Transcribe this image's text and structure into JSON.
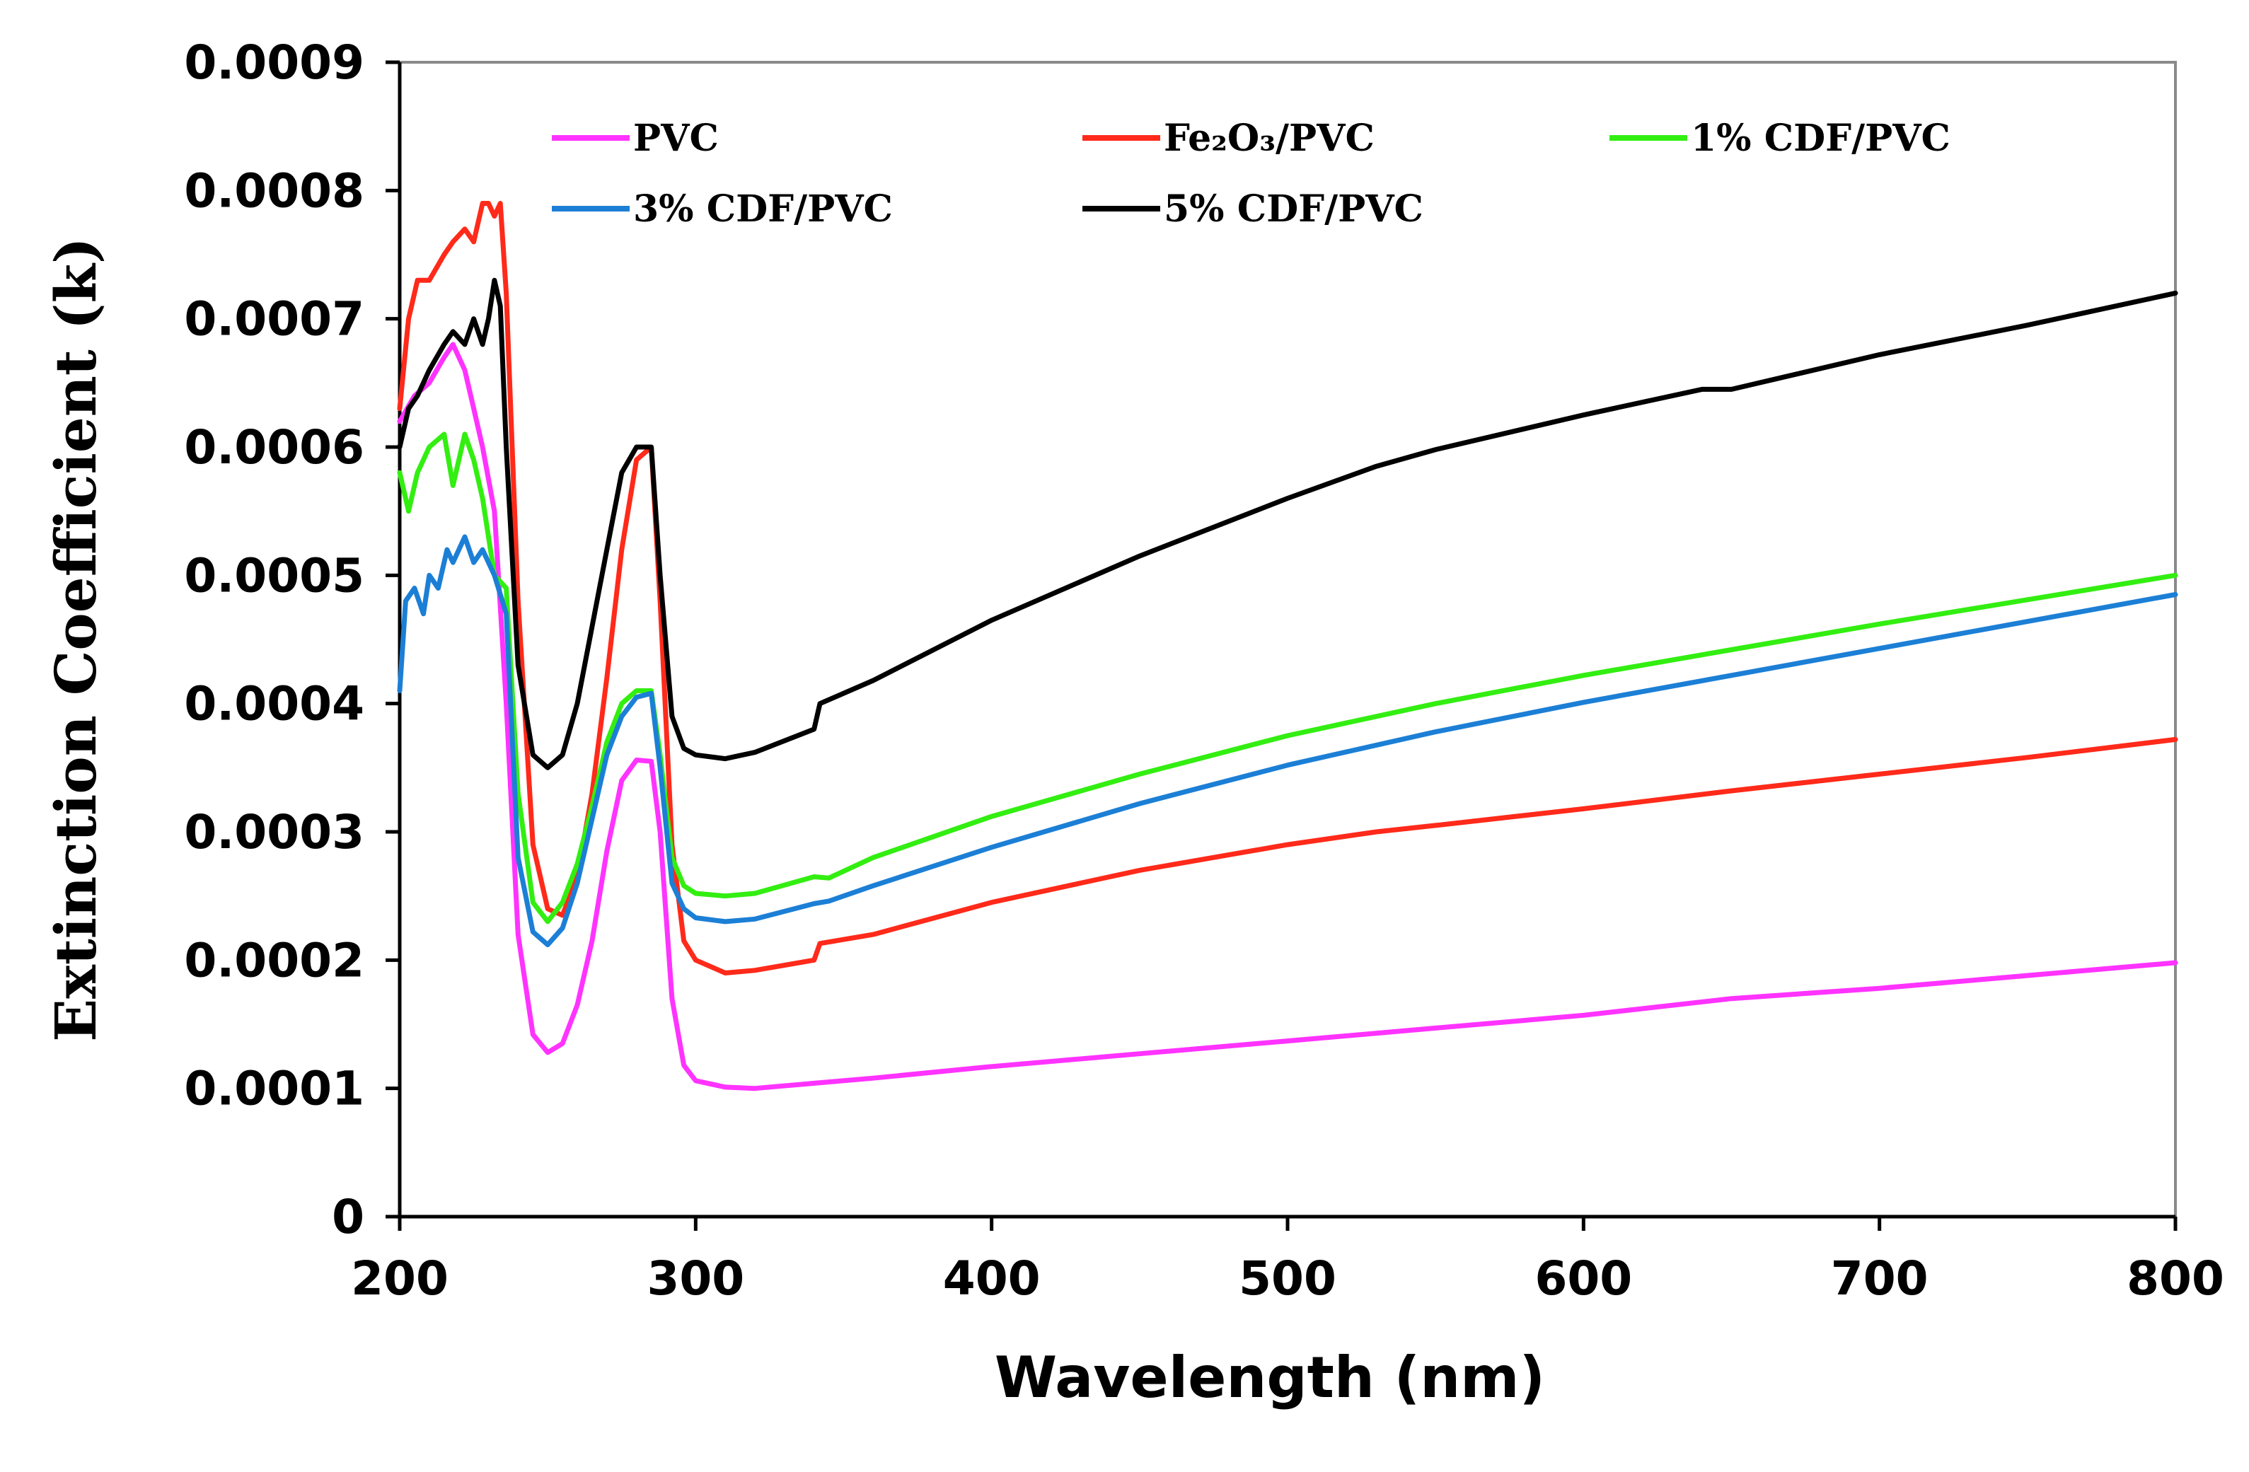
{
  "chart_data": {
    "type": "line",
    "title": "",
    "xlabel": "Wavelength (nm)",
    "ylabel": "Extinction Coefficient (k)",
    "xlim": [
      200,
      800
    ],
    "ylim": [
      0,
      0.0009
    ],
    "x_ticks": [
      200,
      300,
      400,
      500,
      600,
      700,
      800
    ],
    "x_tick_labels": [
      "200",
      "300",
      "400",
      "500",
      "600",
      "700",
      "800"
    ],
    "y_ticks": [
      0,
      0.0001,
      0.0002,
      0.0003,
      0.0004,
      0.0005,
      0.0006,
      0.0007,
      0.0008,
      0.0009
    ],
    "y_tick_labels": [
      "0",
      "0.0001",
      "0.0002",
      "0.0003",
      "0.0004",
      "0.0005",
      "0.0006",
      "0.0007",
      "0.0008",
      "0.0009"
    ],
    "grid": false,
    "legend_position": "top",
    "series": [
      {
        "name": "PVC",
        "color": "#ff33ff",
        "x": [
          200,
          205,
          210,
          215,
          218,
          222,
          225,
          228,
          232,
          236,
          240,
          245,
          250,
          255,
          260,
          265,
          270,
          275,
          280,
          285,
          288,
          292,
          296,
          300,
          310,
          320,
          340,
          360,
          400,
          450,
          500,
          550,
          600,
          650,
          700,
          750,
          800
        ],
        "values": [
          0.00062,
          0.00064,
          0.00065,
          0.00067,
          0.00068,
          0.00066,
          0.00063,
          0.0006,
          0.00055,
          0.0004,
          0.00022,
          0.000142,
          0.000128,
          0.000135,
          0.000165,
          0.000215,
          0.000285,
          0.00034,
          0.000356,
          0.000355,
          0.0003,
          0.00017,
          0.000118,
          0.000106,
          0.000101,
          0.0001,
          0.000104,
          0.000108,
          0.000117,
          0.000127,
          0.000137,
          0.000147,
          0.000157,
          0.00017,
          0.000178,
          0.000188,
          0.000198
        ]
      },
      {
        "name": "Fe₂O₃/PVC",
        "color": "#ff2a1a",
        "x": [
          200,
          203,
          206,
          210,
          215,
          218,
          222,
          225,
          228,
          230,
          232,
          234,
          236,
          240,
          245,
          250,
          255,
          260,
          265,
          270,
          275,
          280,
          285,
          288,
          292,
          296,
          300,
          310,
          320,
          340,
          342,
          360,
          400,
          450,
          500,
          530,
          550,
          600,
          650,
          700,
          750,
          800
        ],
        "values": [
          0.00063,
          0.0007,
          0.00073,
          0.00073,
          0.00075,
          0.00076,
          0.00077,
          0.00076,
          0.00079,
          0.00079,
          0.00078,
          0.00079,
          0.00072,
          0.00048,
          0.00029,
          0.00024,
          0.000235,
          0.000265,
          0.00033,
          0.00042,
          0.00052,
          0.00059,
          0.0006,
          0.00048,
          0.00029,
          0.000215,
          0.0002,
          0.00019,
          0.000192,
          0.0002,
          0.000213,
          0.00022,
          0.000245,
          0.00027,
          0.00029,
          0.0003,
          0.000305,
          0.000318,
          0.000332,
          0.000345,
          0.000358,
          0.000372
        ]
      },
      {
        "name": "1% CDF/PVC",
        "color": "#33ee11",
        "x": [
          200,
          203,
          206,
          210,
          215,
          218,
          222,
          225,
          228,
          232,
          236,
          240,
          245,
          250,
          255,
          260,
          265,
          270,
          275,
          280,
          285,
          288,
          292,
          296,
          300,
          310,
          320,
          340,
          345,
          360,
          400,
          450,
          500,
          550,
          600,
          650,
          700,
          750,
          800
        ],
        "values": [
          0.00058,
          0.00055,
          0.00058,
          0.0006,
          0.00061,
          0.00057,
          0.00061,
          0.00059,
          0.00056,
          0.0005,
          0.00049,
          0.00033,
          0.000245,
          0.00023,
          0.000245,
          0.000275,
          0.00032,
          0.00037,
          0.0004,
          0.00041,
          0.00041,
          0.00036,
          0.00028,
          0.000258,
          0.000252,
          0.00025,
          0.000252,
          0.000265,
          0.000264,
          0.00028,
          0.000312,
          0.000345,
          0.000375,
          0.0004,
          0.000422,
          0.000442,
          0.000462,
          0.000481,
          0.0005
        ]
      },
      {
        "name": "3% CDF/PVC",
        "color": "#1c7fd6",
        "x": [
          200,
          202,
          205,
          208,
          210,
          213,
          216,
          218,
          222,
          225,
          228,
          232,
          236,
          240,
          245,
          250,
          255,
          260,
          265,
          270,
          275,
          280,
          285,
          288,
          292,
          296,
          300,
          310,
          320,
          340,
          345,
          360,
          400,
          450,
          500,
          550,
          600,
          650,
          700,
          750,
          800
        ],
        "values": [
          0.00041,
          0.00048,
          0.00049,
          0.00047,
          0.0005,
          0.00049,
          0.00052,
          0.00051,
          0.00053,
          0.00051,
          0.00052,
          0.0005,
          0.00047,
          0.00028,
          0.000222,
          0.000212,
          0.000225,
          0.00026,
          0.00031,
          0.00036,
          0.00039,
          0.000405,
          0.000408,
          0.00035,
          0.00026,
          0.00024,
          0.000233,
          0.00023,
          0.000232,
          0.000244,
          0.000246,
          0.000258,
          0.000288,
          0.000322,
          0.000352,
          0.000378,
          0.000401,
          0.000422,
          0.000443,
          0.000464,
          0.000485
        ]
      },
      {
        "name": "5% CDF/PVC",
        "color": "#000000",
        "x": [
          200,
          203,
          206,
          210,
          215,
          218,
          222,
          225,
          228,
          230,
          232,
          234,
          236,
          240,
          245,
          250,
          255,
          260,
          265,
          270,
          275,
          280,
          285,
          288,
          292,
          296,
          300,
          310,
          320,
          340,
          342,
          360,
          400,
          450,
          500,
          530,
          550,
          600,
          640,
          650,
          700,
          750,
          800
        ],
        "values": [
          0.0006,
          0.00063,
          0.00064,
          0.00066,
          0.00068,
          0.00069,
          0.00068,
          0.0007,
          0.00068,
          0.0007,
          0.00073,
          0.00071,
          0.0006,
          0.00043,
          0.00036,
          0.00035,
          0.00036,
          0.0004,
          0.00046,
          0.00052,
          0.00058,
          0.0006,
          0.0006,
          0.0005,
          0.00039,
          0.000365,
          0.00036,
          0.000357,
          0.000362,
          0.00038,
          0.0004,
          0.000418,
          0.000465,
          0.000515,
          0.00056,
          0.000585,
          0.000598,
          0.000625,
          0.000645,
          0.000645,
          0.000672,
          0.000695,
          0.00072
        ]
      }
    ]
  }
}
